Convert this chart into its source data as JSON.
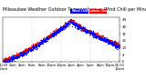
{
  "title": "Milwaukee Weather Outdoor Temperature vs Wind Chill per Minute (24 Hours)",
  "legend_temp_label": "Outdoor Temp",
  "legend_wind_label": "Wind Chill",
  "legend_temp_color": "#FF0000",
  "legend_wind_color": "#0000FF",
  "background_color": "#FFFFFF",
  "grid_color": "#999999",
  "dot_size": 0.8,
  "ylim": [
    -5,
    52
  ],
  "yticks": [
    -4,
    4,
    13,
    22,
    31,
    40,
    49
  ],
  "ytick_labels": [
    "-4",
    "4",
    "13",
    "22",
    "31",
    "40",
    "49"
  ],
  "xlim": [
    0,
    1440
  ],
  "vline_positions": [
    360,
    720,
    1080
  ],
  "xtick_positions": [
    0,
    120,
    240,
    360,
    480,
    600,
    720,
    840,
    960,
    1080,
    1200,
    1320,
    1440
  ],
  "xtick_labels": [
    "01/30\n12am",
    "2am",
    "4am",
    "6am",
    "8am",
    "10am",
    "12pm",
    "2pm",
    "4pm",
    "6pm",
    "8pm",
    "10pm",
    "01/31\n12am"
  ],
  "title_fontsize": 3.5,
  "tick_fontsize": 2.8
}
